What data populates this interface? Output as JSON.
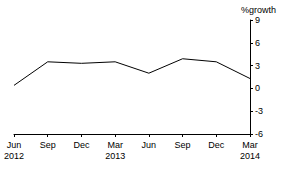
{
  "chart_data": {
    "type": "line",
    "ylabel": "%growth",
    "categories": [
      "Jun\n2012",
      "Sep",
      "Dec",
      "Mar\n2013",
      "Jun",
      "Sep",
      "Dec",
      "Mar\n2014"
    ],
    "values": [
      0.4,
      3.5,
      3.3,
      3.5,
      2.0,
      3.9,
      3.5,
      1.3
    ],
    "color": "#000000",
    "ylim": [
      -6,
      9
    ],
    "yticks": [
      -6,
      -3,
      0,
      3,
      6,
      9
    ],
    "grid": false
  }
}
